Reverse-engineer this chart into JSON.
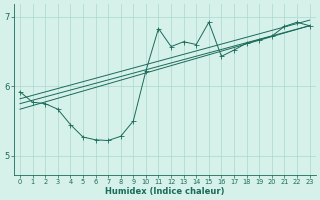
{
  "title": "",
  "xlabel": "Humidex (Indice chaleur)",
  "ylabel": "",
  "bg_color": "#d6f0ea",
  "line_color": "#1a6b5a",
  "grid_color": "#aad9cf",
  "xlim": [
    -0.5,
    23.5
  ],
  "ylim": [
    4.72,
    7.18
  ],
  "yticks": [
    5,
    6,
    7
  ],
  "xticks": [
    0,
    1,
    2,
    3,
    4,
    5,
    6,
    7,
    8,
    9,
    10,
    11,
    12,
    13,
    14,
    15,
    16,
    17,
    18,
    19,
    20,
    21,
    22,
    23
  ],
  "line1_x": [
    0,
    1,
    2,
    3,
    4,
    5,
    6,
    7,
    8,
    9,
    10,
    11,
    12,
    13,
    14,
    15,
    16,
    17,
    18,
    19,
    20,
    21,
    22,
    23
  ],
  "line1_y": [
    5.92,
    5.77,
    5.75,
    5.67,
    5.45,
    5.27,
    5.23,
    5.22,
    5.28,
    5.5,
    6.22,
    6.83,
    6.57,
    6.64,
    6.6,
    6.92,
    6.43,
    6.52,
    6.62,
    6.67,
    6.72,
    6.86,
    6.92,
    6.87
  ],
  "line2_x": [
    0,
    23
  ],
  "line2_y": [
    5.67,
    6.87
  ],
  "line3_x": [
    0,
    23
  ],
  "line3_y": [
    5.75,
    6.87
  ],
  "line4_x": [
    0,
    23
  ],
  "line4_y": [
    5.82,
    6.95
  ],
  "marker_size": 2.0,
  "xlabel_fontsize": 6.0,
  "xtick_fontsize": 4.8,
  "ytick_fontsize": 6.0
}
